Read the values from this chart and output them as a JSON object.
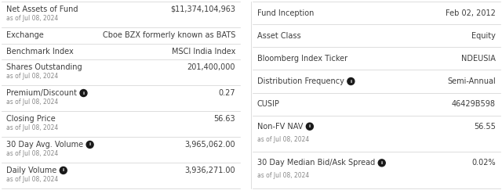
{
  "left_rows": [
    {
      "label": "Net Assets of Fund",
      "value": "$11,374,104,963",
      "sub": "as of Jul 08, 2024",
      "info": false
    },
    {
      "label": "Exchange",
      "value": "Cboe BZX formerly known as BATS",
      "sub": "",
      "info": false
    },
    {
      "label": "Benchmark Index",
      "value": "MSCI India Index",
      "sub": "",
      "info": false
    },
    {
      "label": "Shares Outstanding",
      "value": "201,400,000",
      "sub": "as of Jul 08, 2024",
      "info": false
    },
    {
      "label": "Premium/Discount",
      "value": "0.27",
      "sub": "as of Jul 08, 2024",
      "info": true
    },
    {
      "label": "Closing Price",
      "value": "56.63",
      "sub": "as of Jul 08, 2024",
      "info": false
    },
    {
      "label": "30 Day Avg. Volume",
      "value": "3,965,062.00",
      "sub": "as of Jul 08, 2024",
      "info": true
    },
    {
      "label": "Daily Volume",
      "value": "3,936,271.00",
      "sub": "as of Jul 08, 2024",
      "info": true
    }
  ],
  "right_rows": [
    {
      "label": "Fund Inception",
      "value": "Feb 02, 2012",
      "sub": "",
      "info": false
    },
    {
      "label": "Asset Class",
      "value": "Equity",
      "sub": "",
      "info": false
    },
    {
      "label": "Bloomberg Index Ticker",
      "value": "NDEUSIA",
      "sub": "",
      "info": false
    },
    {
      "label": "Distribution Frequency",
      "value": "Semi-Annual",
      "sub": "",
      "info": true
    },
    {
      "label": "CUSIP",
      "value": "46429B598",
      "sub": "",
      "info": false
    },
    {
      "label": "Non-FV NAV",
      "value": "56.55",
      "sub": "as of Jul 08, 2024",
      "info": true
    },
    {
      "label": "30 Day Median Bid/Ask Spread",
      "value": "0.02%",
      "sub": "as of Jul 08, 2024",
      "info": true
    }
  ],
  "label_color": "#3d3d3d",
  "value_color": "#3d3d3d",
  "sub_color": "#888888",
  "line_color": "#d0d0d0",
  "bg_color": "#ffffff",
  "info_bg": "#1a1a1a",
  "info_fg": "#ffffff",
  "label_fs": 7.0,
  "value_fs": 7.0,
  "sub_fs": 5.5
}
